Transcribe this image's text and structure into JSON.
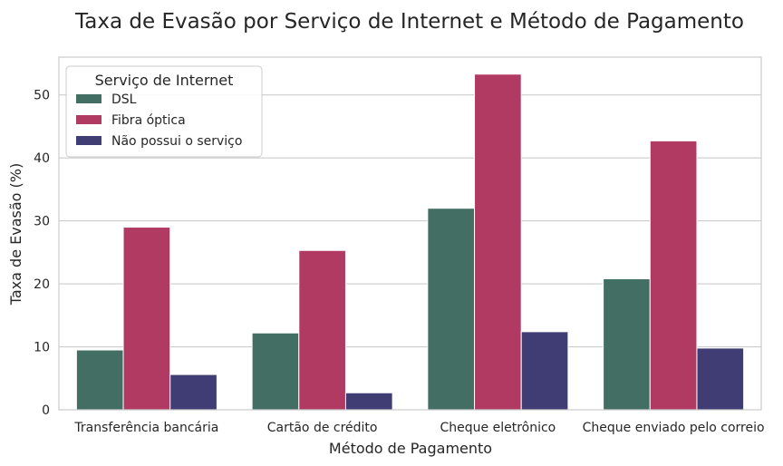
{
  "chart_data": {
    "type": "bar",
    "title": "Taxa de Evasão por Serviço de Internet e Método de Pagamento",
    "xlabel": "Método de Pagamento",
    "ylabel": "Taxa de Evasão (%)",
    "ylim": [
      0,
      56
    ],
    "yticks": [
      0,
      10,
      20,
      30,
      40,
      50
    ],
    "grid": true,
    "categories": [
      "Transferência bancária",
      "Cartão de crédito",
      "Cheque eletrônico",
      "Cheque enviado pelo correio"
    ],
    "legend": {
      "title": "Serviço de Internet",
      "placement": "top-left"
    },
    "series": [
      {
        "name": "DSL",
        "color": "#426e63",
        "values": [
          9.5,
          12.2,
          32.0,
          20.8
        ]
      },
      {
        "name": "Fibra óptica",
        "color": "#b03a61",
        "values": [
          29.0,
          25.3,
          53.3,
          42.7
        ]
      },
      {
        "name": "Não possui o serviço",
        "color": "#3f3d73",
        "values": [
          5.6,
          2.7,
          12.4,
          9.8
        ]
      }
    ]
  }
}
